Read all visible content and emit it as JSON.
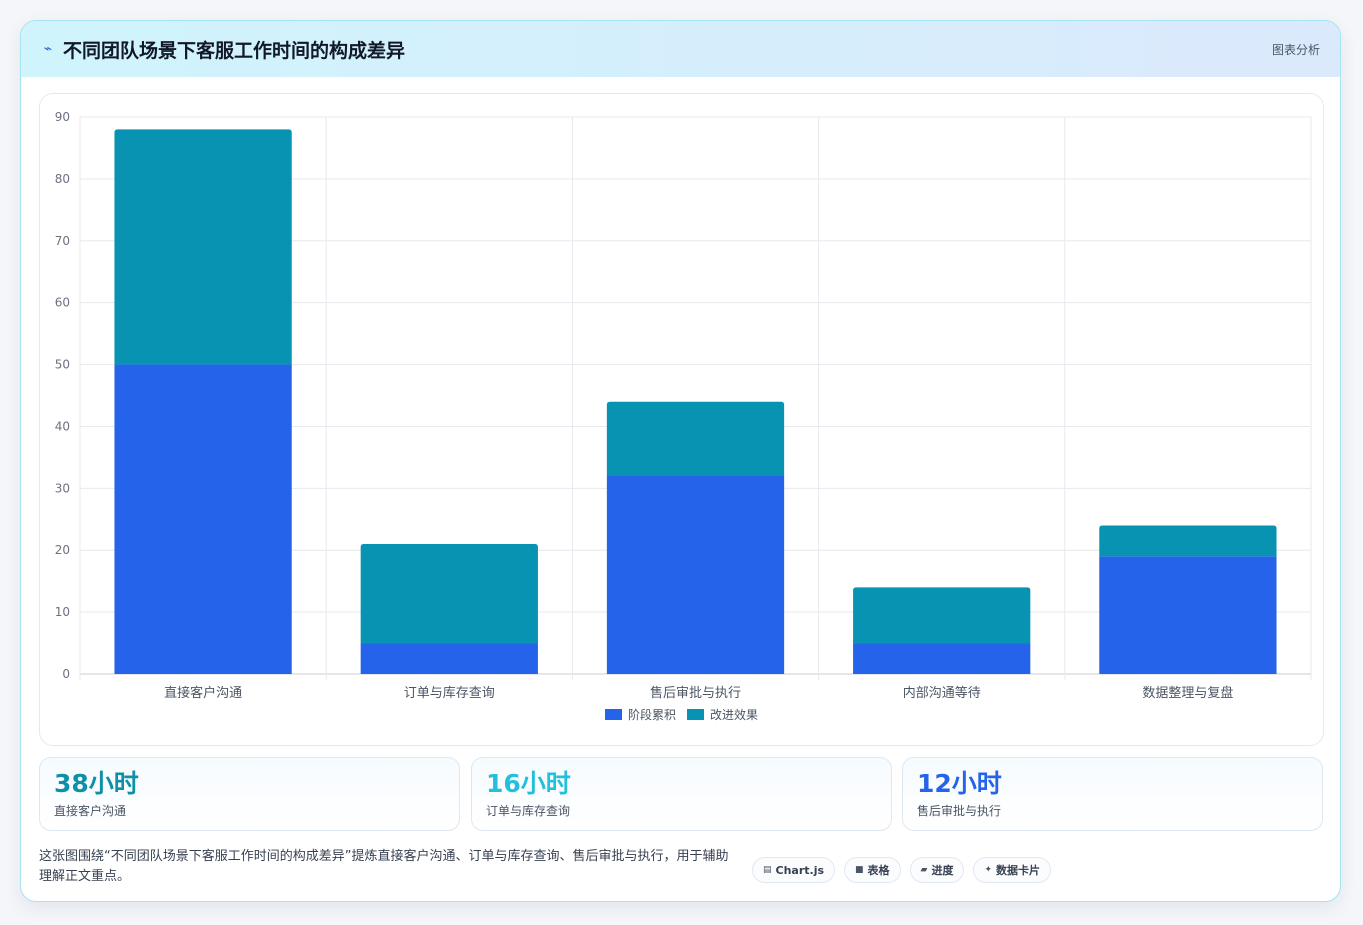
{
  "header": {
    "title": "不同团队场景下客服工作时间的构成差异",
    "tag": "图表分析",
    "icon": "lightning-icon"
  },
  "chart_data": {
    "type": "bar",
    "stacked": true,
    "categories": [
      "直接客户沟通",
      "订单与库存查询",
      "售后审批与执行",
      "内部沟通等待",
      "数据整理与复盘"
    ],
    "series": [
      {
        "name": "阶段累积",
        "color": "#2563eb",
        "values": [
          50,
          5,
          32,
          5,
          19
        ]
      },
      {
        "name": "改进效果",
        "color": "#0893b2",
        "values": [
          38,
          16,
          12,
          9,
          5
        ]
      }
    ],
    "y_ticks": [
      0,
      10,
      20,
      30,
      40,
      50,
      60,
      70,
      80,
      90
    ],
    "ylim": [
      0,
      90
    ],
    "grid": true,
    "legend_position": "bottom"
  },
  "stats": [
    {
      "value": "38小时",
      "label": "直接客户沟通",
      "color": "#0e90a8"
    },
    {
      "value": "16小时",
      "label": "订单与库存查询",
      "color": "#22c0dc"
    },
    {
      "value": "12小时",
      "label": "售后审批与执行",
      "color": "#2563eb"
    }
  ],
  "description": "这张图围绕“不同团队场景下客服工作时间的构成差异”提炼直接客户沟通、订单与库存查询、售后审批与执行，用于辅助理解正文重点。",
  "chips": [
    {
      "icon": "▤",
      "icon_name": "chart-icon",
      "label": "Chart.js"
    },
    {
      "icon": "■",
      "icon_name": "table-icon",
      "label": "表格"
    },
    {
      "icon": "▰",
      "icon_name": "progress-icon",
      "label": "进度"
    },
    {
      "icon": "✦",
      "icon_name": "sparkle-icon",
      "label": "数据卡片"
    }
  ]
}
